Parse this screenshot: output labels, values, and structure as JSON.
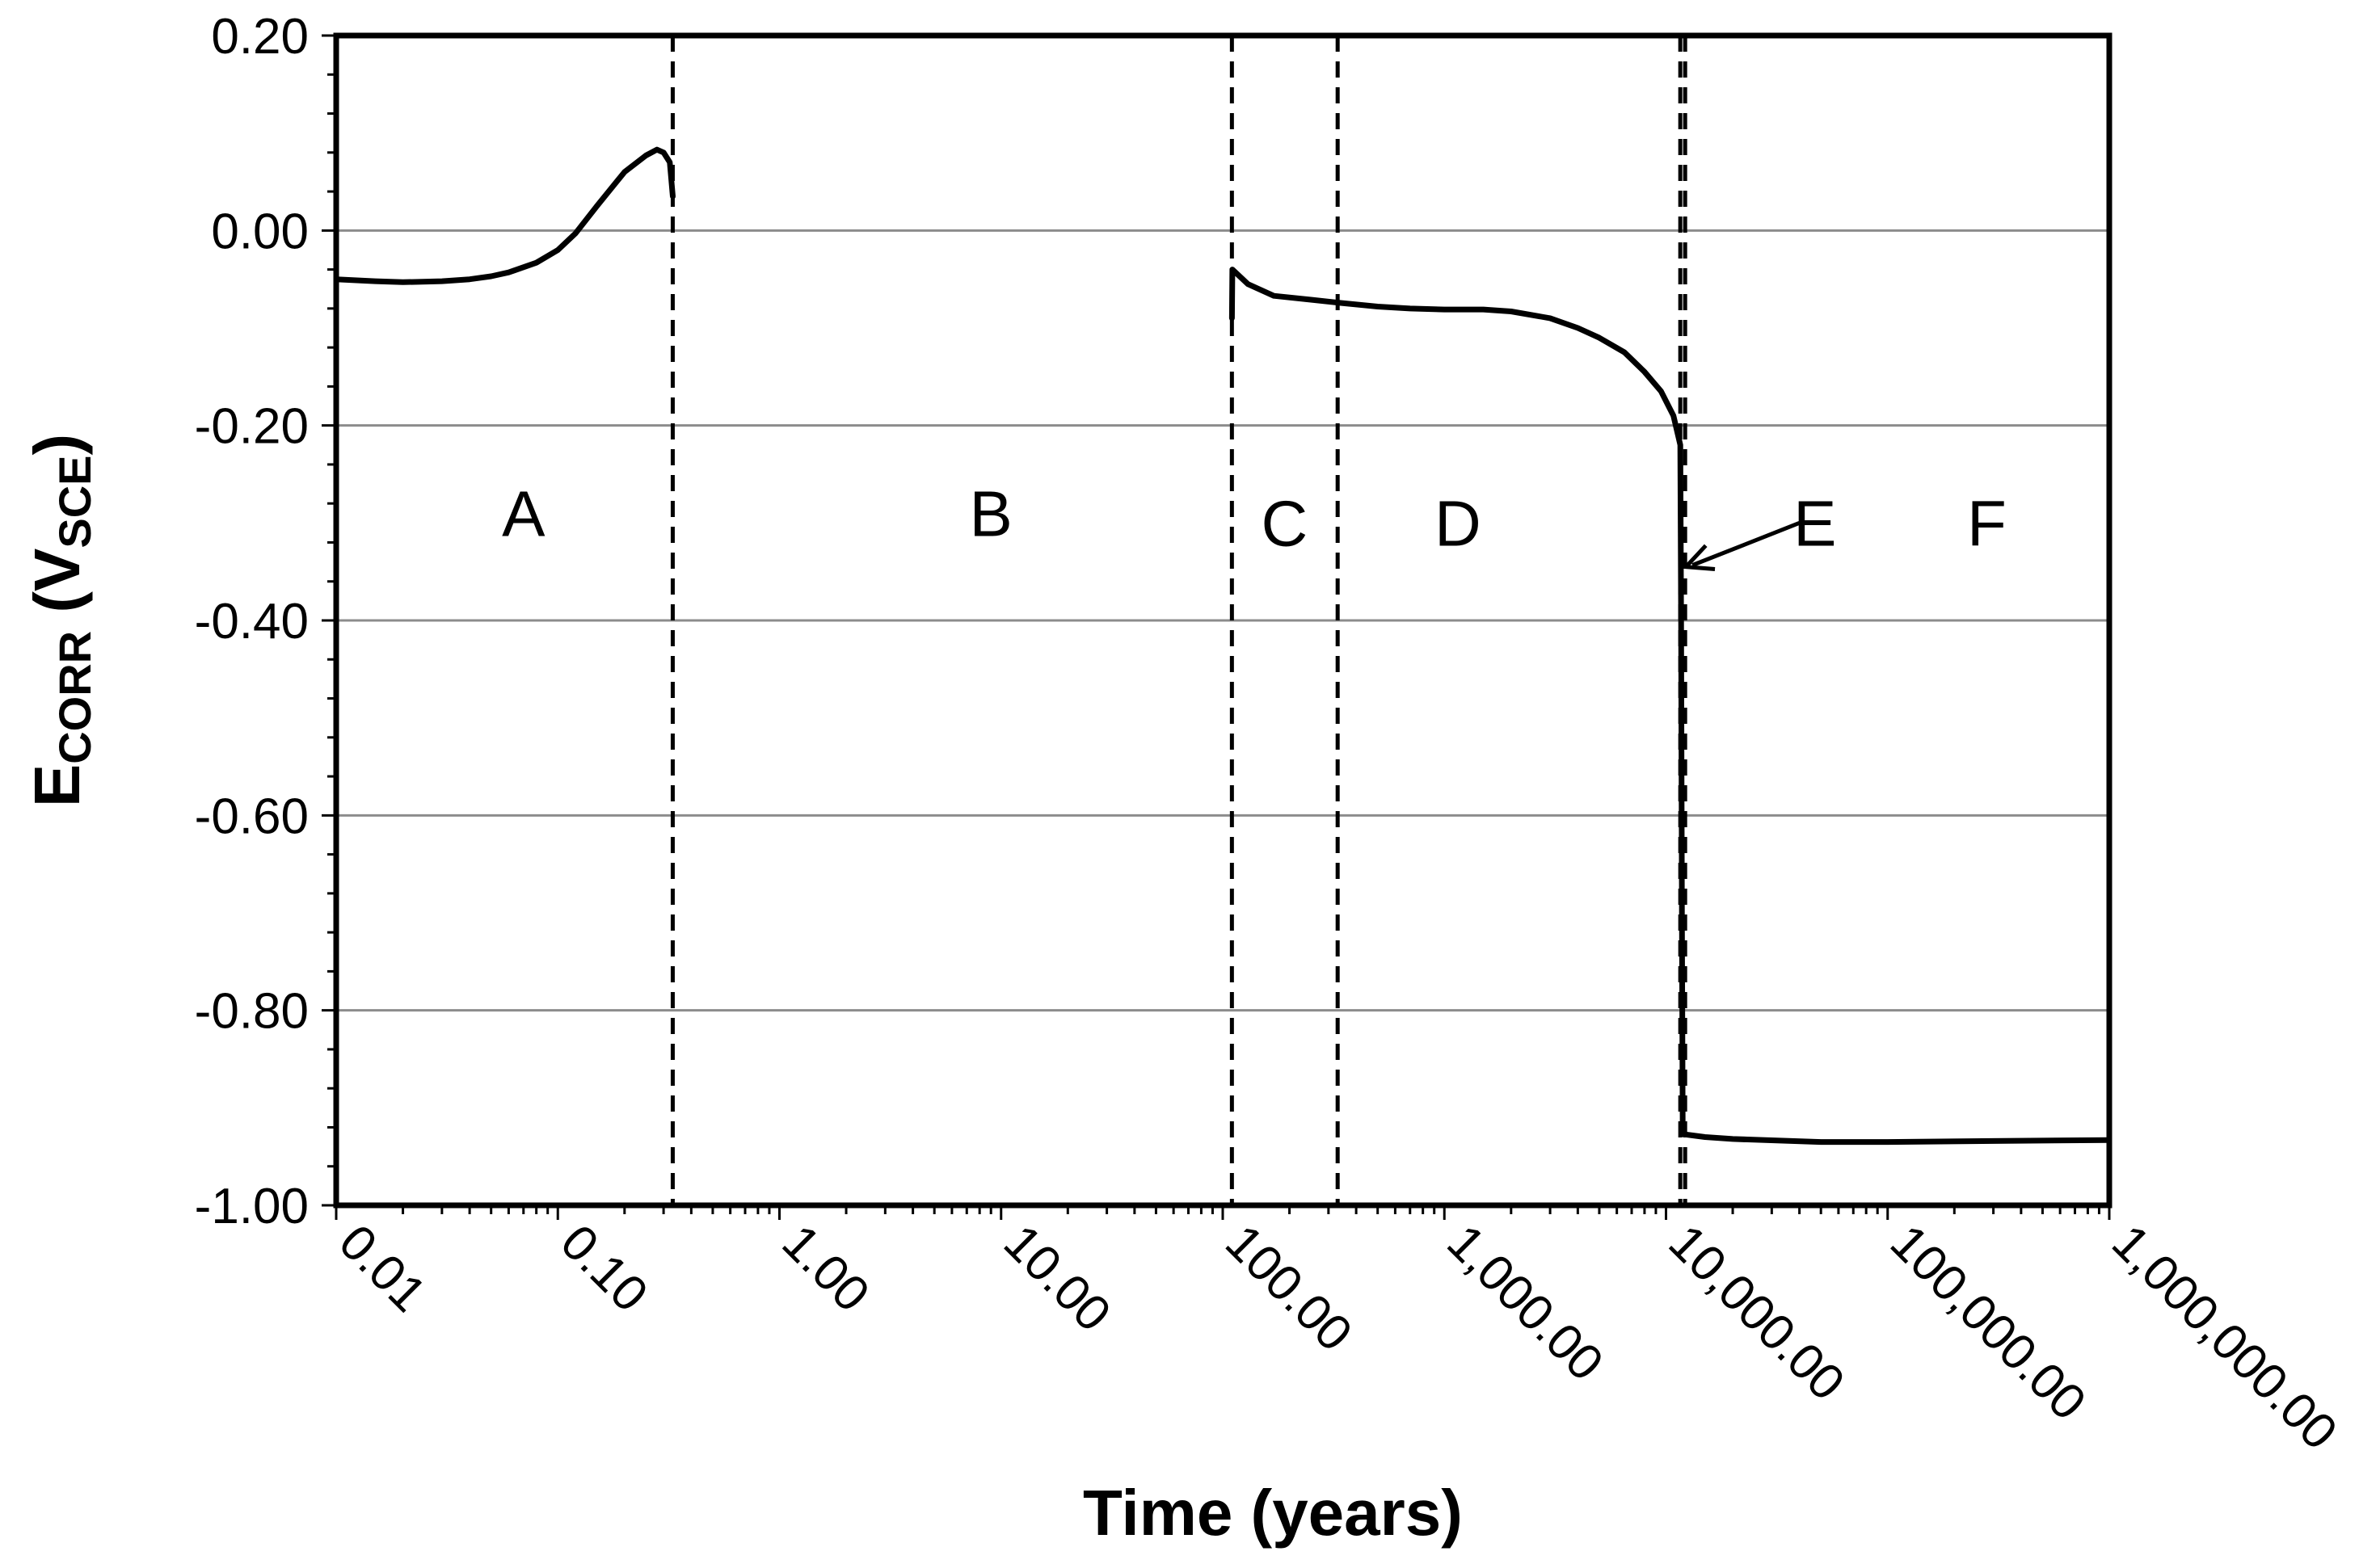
{
  "chart_data": {
    "type": "line",
    "xscale": "log",
    "xlim": [
      0.01,
      1000000
    ],
    "ylim": [
      -1.0,
      0.2
    ],
    "xlabel": "Time (years)",
    "ylabel": {
      "main": "E",
      "sub1": "CORR",
      "mid": " (V",
      "sub2": "SCE",
      "end": ")"
    },
    "title": "",
    "grid": "horizontal",
    "x_ticks": [
      {
        "value": 0.01,
        "label": "0.01"
      },
      {
        "value": 0.1,
        "label": "0.10"
      },
      {
        "value": 1,
        "label": "1.00"
      },
      {
        "value": 10,
        "label": "10.00"
      },
      {
        "value": 100,
        "label": "100.00"
      },
      {
        "value": 1000,
        "label": "1,000.00"
      },
      {
        "value": 10000,
        "label": "10,000.00"
      },
      {
        "value": 100000,
        "label": "100,000.00"
      },
      {
        "value": 1000000,
        "label": "1,000,000.00"
      }
    ],
    "y_ticks": [
      {
        "value": 0.2,
        "label": "0.20"
      },
      {
        "value": 0.0,
        "label": "0.00"
      },
      {
        "value": -0.2,
        "label": "-0.20"
      },
      {
        "value": -0.4,
        "label": "-0.40"
      },
      {
        "value": -0.6,
        "label": "-0.60"
      },
      {
        "value": -0.8,
        "label": "-0.80"
      },
      {
        "value": -1.0,
        "label": "-1.00"
      }
    ],
    "boundaries": [
      0.33,
      110,
      330,
      11600,
      12200
    ],
    "regions": [
      {
        "label": "A",
        "x": 0.07,
        "y": -0.29
      },
      {
        "label": "B",
        "x": 9,
        "y": -0.29
      },
      {
        "label": "C",
        "x": 190,
        "y": -0.3
      },
      {
        "label": "D",
        "x": 1150,
        "y": -0.3
      },
      {
        "label": "E",
        "x": 47000,
        "y": -0.3
      },
      {
        "label": "F",
        "x": 280000,
        "y": -0.3
      }
    ],
    "annotation_arrow": {
      "from": {
        "x": 40000,
        "y": -0.3
      },
      "to": {
        "x": 12300,
        "y": -0.345
      }
    },
    "series": [
      {
        "segments": [
          [
            [
              0.01,
              -0.05
            ],
            [
              0.015,
              -0.052
            ],
            [
              0.02,
              -0.053
            ],
            [
              0.03,
              -0.052
            ],
            [
              0.04,
              -0.05
            ],
            [
              0.05,
              -0.047
            ],
            [
              0.06,
              -0.043
            ],
            [
              0.08,
              -0.033
            ],
            [
              0.1,
              -0.02
            ],
            [
              0.12,
              -0.003
            ],
            [
              0.15,
              0.025
            ],
            [
              0.2,
              0.06
            ],
            [
              0.25,
              0.077
            ],
            [
              0.28,
              0.083
            ],
            [
              0.3,
              0.08
            ],
            [
              0.32,
              0.07
            ],
            [
              0.33,
              0.035
            ]
          ],
          [
            [
              110,
              -0.09
            ],
            [
              110.5,
              -0.04
            ],
            [
              130,
              -0.055
            ],
            [
              170,
              -0.067
            ],
            [
              250,
              -0.071
            ],
            [
              330,
              -0.074
            ],
            [
              500,
              -0.078
            ],
            [
              700,
              -0.08
            ],
            [
              1000,
              -0.081
            ],
            [
              1500,
              -0.081
            ],
            [
              2000,
              -0.083
            ],
            [
              3000,
              -0.09
            ],
            [
              4000,
              -0.1
            ],
            [
              5000,
              -0.11
            ],
            [
              6500,
              -0.125
            ],
            [
              8000,
              -0.145
            ],
            [
              9500,
              -0.165
            ],
            [
              10800,
              -0.19
            ],
            [
              11600,
              -0.22
            ],
            [
              11700,
              -0.4
            ],
            [
              11800,
              -0.7
            ],
            [
              11900,
              -0.927
            ],
            [
              15000,
              -0.93
            ],
            [
              20000,
              -0.932
            ],
            [
              50000,
              -0.935
            ],
            [
              100000,
              -0.935
            ],
            [
              300000,
              -0.934
            ],
            [
              1000000,
              -0.933
            ]
          ]
        ]
      }
    ]
  }
}
